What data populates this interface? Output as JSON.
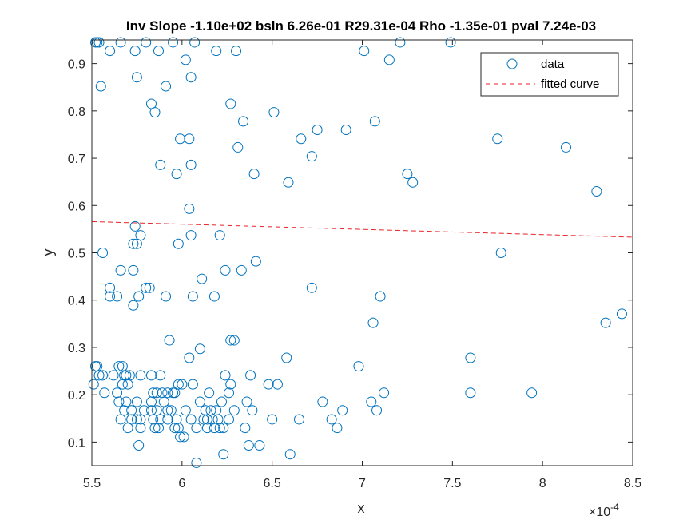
{
  "chart_data": {
    "type": "scatter",
    "title": "Inv Slope -1.10e+02 bsln 6.26e-01 R29.31e-04 Rho -1.35e-01 pval 7.24e-03",
    "xlabel": "x",
    "ylabel": "y",
    "x_exponent_base": "×10",
    "x_exponent_power": "-4",
    "x_scale_factor": 0.0001,
    "xlim": [
      5.5,
      8.5
    ],
    "ylim": [
      0.05,
      0.95
    ],
    "xticks": [
      5.5,
      6,
      6.5,
      7,
      7.5,
      8,
      8.5
    ],
    "xtick_labels": [
      "5.5",
      "6",
      "6.5",
      "7",
      "7.5",
      "8",
      "8.5"
    ],
    "yticks": [
      0.1,
      0.2,
      0.3,
      0.4,
      0.5,
      0.6,
      0.7,
      0.8,
      0.9
    ],
    "ytick_labels": [
      "0.1",
      "0.2",
      "0.3",
      "0.4",
      "0.5",
      "0.6",
      "0.7",
      "0.8",
      "0.9"
    ],
    "grid": false,
    "legend_position": "top-right",
    "legend": [
      "data",
      "fitted curve"
    ],
    "colors": {
      "data": "#0072BD",
      "fit": "#E8222A"
    },
    "series": [
      {
        "name": "data",
        "style": "open-circle",
        "x": [
          5.52,
          5.53,
          5.54,
          5.6,
          5.66,
          5.74,
          5.8,
          5.87,
          5.95,
          6.02,
          6.07,
          6.19,
          6.3,
          7.01,
          7.15,
          7.21,
          7.49,
          5.55,
          5.75,
          5.91,
          6.05,
          5.83,
          5.85,
          6.27,
          6.34,
          6.51,
          6.66,
          6.75,
          6.91,
          7.07,
          5.99,
          6.04,
          6.31,
          7.75,
          8.13,
          6.72,
          5.88,
          6.05,
          5.97,
          6.4,
          7.25,
          7.28,
          6.59,
          8.3,
          6.04,
          5.74,
          5.77,
          6.05,
          6.21,
          5.73,
          5.75,
          5.98,
          7.77,
          5.56,
          6.41,
          6.24,
          5.66,
          5.73,
          6.33,
          5.6,
          5.64,
          5.6,
          5.76,
          5.8,
          5.82,
          5.91,
          6.06,
          6.11,
          6.18,
          6.72,
          7.1,
          5.73,
          7.06,
          8.35,
          8.44,
          5.93,
          6.27,
          6.29,
          6.1,
          6.04,
          6.58,
          7.6,
          6.98,
          5.52,
          5.53,
          5.65,
          5.67,
          5.54,
          5.56,
          5.62,
          5.68,
          5.69,
          5.71,
          5.77,
          5.83,
          5.88,
          6.24,
          6.38,
          5.67,
          5.7,
          5.84,
          5.86,
          5.89,
          5.92,
          5.95,
          5.96,
          5.98,
          6.0,
          6.06,
          6.15,
          6.26,
          6.27,
          5.51,
          5.57,
          5.65,
          5.69,
          5.75,
          5.83,
          5.9,
          6.1,
          6.22,
          6.36,
          6.48,
          7.94,
          6.53,
          7.12,
          7.6,
          5.64,
          5.68,
          5.72,
          5.79,
          5.83,
          5.86,
          5.92,
          5.94,
          6.02,
          6.13,
          6.16,
          6.19,
          6.29,
          6.39,
          6.78,
          6.89,
          5.66,
          5.72,
          5.75,
          5.77,
          5.84,
          5.88,
          5.92,
          5.97,
          6.05,
          6.12,
          6.14,
          6.17,
          6.2,
          6.26,
          6.5,
          6.65,
          6.83,
          7.05,
          5.7,
          5.77,
          5.85,
          5.87,
          5.96,
          5.98,
          6.08,
          6.14,
          6.18,
          6.21,
          6.23,
          6.35,
          6.86,
          7.08,
          5.99,
          6.01,
          5.76,
          6.37,
          6.43,
          6.23,
          6.6,
          6.08
        ],
        "y": [
          0.945,
          0.945,
          0.945,
          0.927,
          0.945,
          0.927,
          0.945,
          0.927,
          0.945,
          0.908,
          0.945,
          0.927,
          0.927,
          0.927,
          0.908,
          0.945,
          0.945,
          0.852,
          0.871,
          0.852,
          0.871,
          0.815,
          0.797,
          0.815,
          0.778,
          0.797,
          0.741,
          0.76,
          0.76,
          0.778,
          0.741,
          0.741,
          0.723,
          0.741,
          0.723,
          0.704,
          0.686,
          0.686,
          0.667,
          0.667,
          0.667,
          0.649,
          0.649,
          0.63,
          0.593,
          0.556,
          0.537,
          0.537,
          0.537,
          0.519,
          0.519,
          0.519,
          0.5,
          0.5,
          0.482,
          0.463,
          0.463,
          0.463,
          0.463,
          0.426,
          0.408,
          0.408,
          0.408,
          0.426,
          0.426,
          0.408,
          0.408,
          0.445,
          0.408,
          0.426,
          0.408,
          0.389,
          0.352,
          0.352,
          0.371,
          0.315,
          0.315,
          0.315,
          0.297,
          0.278,
          0.278,
          0.278,
          0.26,
          0.26,
          0.26,
          0.26,
          0.26,
          0.241,
          0.241,
          0.241,
          0.241,
          0.241,
          0.241,
          0.241,
          0.241,
          0.241,
          0.241,
          0.241,
          0.222,
          0.222,
          0.204,
          0.204,
          0.204,
          0.204,
          0.204,
          0.204,
          0.222,
          0.222,
          0.222,
          0.204,
          0.204,
          0.222,
          0.222,
          0.204,
          0.185,
          0.185,
          0.185,
          0.185,
          0.185,
          0.185,
          0.185,
          0.185,
          0.222,
          0.204,
          0.222,
          0.204,
          0.204,
          0.204,
          0.167,
          0.167,
          0.167,
          0.167,
          0.167,
          0.167,
          0.167,
          0.167,
          0.167,
          0.167,
          0.167,
          0.167,
          0.167,
          0.185,
          0.167,
          0.148,
          0.148,
          0.148,
          0.148,
          0.148,
          0.148,
          0.148,
          0.148,
          0.148,
          0.148,
          0.148,
          0.148,
          0.148,
          0.148,
          0.148,
          0.148,
          0.148,
          0.185,
          0.13,
          0.13,
          0.13,
          0.13,
          0.13,
          0.13,
          0.13,
          0.13,
          0.13,
          0.13,
          0.13,
          0.13,
          0.13,
          0.167,
          0.111,
          0.111,
          0.093,
          0.093,
          0.093,
          0.074,
          0.074,
          0.056
        ]
      },
      {
        "name": "fitted curve",
        "style": "dashed-line",
        "x": [
          5.5,
          8.5
        ],
        "y": [
          0.566,
          0.533
        ]
      }
    ]
  }
}
